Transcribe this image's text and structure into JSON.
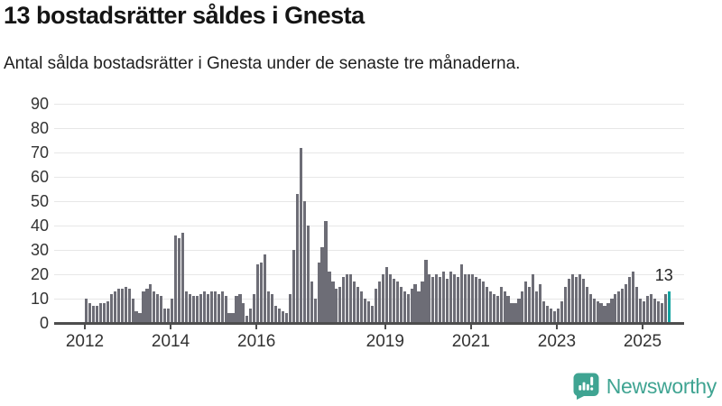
{
  "header": {
    "title": "13 bostadsrätter såldes i Gnesta",
    "subtitle": "Antal sålda bostadsrätter i Gnesta under de senaste tre månaderna."
  },
  "chart_data": {
    "type": "bar",
    "title": "13 bostadsrätter såldes i Gnesta",
    "subtitle": "Antal sålda bostadsrätter i Gnesta under de senaste tre månaderna.",
    "x_unit": "month",
    "x_start": "2012-01",
    "x_end": "2025-08",
    "x_tick_labels": [
      "2012",
      "2014",
      "2016",
      "2019",
      "2021",
      "2023",
      "2025"
    ],
    "x_tick_month_offsets": [
      0,
      24,
      48,
      84,
      108,
      132,
      156
    ],
    "y_ticks": [
      0,
      10,
      20,
      30,
      40,
      50,
      60,
      70,
      80,
      90
    ],
    "ylim": [
      0,
      92
    ],
    "grid": "horizontal",
    "legend": "none",
    "values": [
      10,
      8,
      7,
      7,
      8,
      8,
      9,
      12,
      13,
      14,
      14,
      15,
      14,
      10,
      5,
      4,
      13,
      14,
      16,
      13,
      12,
      11,
      6,
      6,
      10,
      36,
      35,
      37,
      13,
      12,
      11,
      11,
      12,
      13,
      12,
      13,
      13,
      12,
      13,
      11,
      4,
      4,
      11,
      12,
      8,
      3,
      6,
      12,
      24,
      25,
      28,
      13,
      12,
      7,
      6,
      5,
      4,
      12,
      30,
      53,
      72,
      50,
      40,
      17,
      10,
      25,
      31,
      42,
      21,
      17,
      14,
      15,
      19,
      20,
      20,
      17,
      15,
      13,
      10,
      9,
      7,
      14,
      17,
      20,
      23,
      20,
      18,
      17,
      15,
      13,
      12,
      14,
      16,
      13,
      17,
      26,
      20,
      19,
      20,
      19,
      21,
      18,
      21,
      20,
      19,
      24,
      20,
      20,
      20,
      19,
      18,
      17,
      15,
      13,
      12,
      11,
      15,
      13,
      11,
      8,
      8,
      10,
      13,
      17,
      15,
      20,
      13,
      16,
      9,
      7,
      6,
      5,
      6,
      9,
      15,
      18,
      20,
      19,
      20,
      18,
      15,
      12,
      10,
      9,
      8,
      7,
      8,
      10,
      12,
      13,
      14,
      16,
      19,
      21,
      15,
      10,
      9,
      11,
      12,
      10,
      9,
      8,
      12,
      13
    ],
    "highlight_last": true,
    "last_value_label": "13",
    "bar_color": "#6d6d76",
    "highlight_color": "#13a3a0",
    "gridline_color": "#e7e7e7",
    "axis_color": "#4d4d4d",
    "label_color": "#333333"
  },
  "footer": {
    "brand": "Newsworthy",
    "brand_color": "#3fa492",
    "logo_icon": "bar-chart-speech-bubble"
  }
}
